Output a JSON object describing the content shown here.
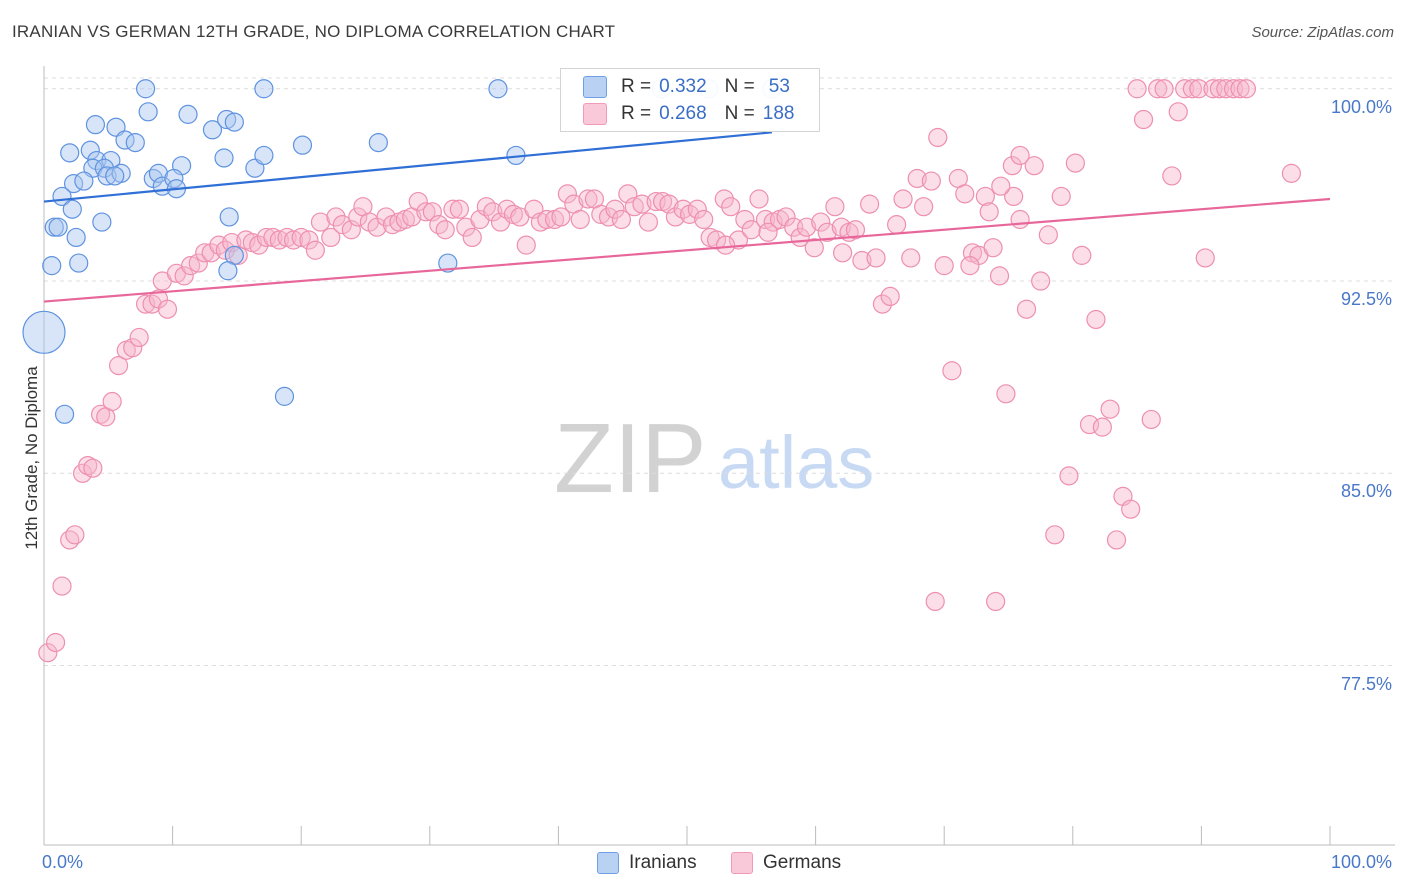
{
  "title": "IRANIAN VS GERMAN 12TH GRADE, NO DIPLOMA CORRELATION CHART",
  "source": "Source: ZipAtlas.com",
  "watermark": {
    "zip": "ZIP",
    "atlas": "atlas"
  },
  "colors": {
    "iranians": "#6fa0e6",
    "germans": "#f09ab8",
    "iranians_line": "#2f6fd6",
    "germans_line": "#e8679a",
    "tick_label": "#4a78c8"
  },
  "legend_top": [
    {
      "r_label": "R = ",
      "r_value": "0.332",
      "n_label": "N = ",
      "n_value": "53"
    },
    {
      "r_label": "R = ",
      "r_value": "0.268",
      "n_label": "N = ",
      "n_value": "188"
    }
  ],
  "legend_bottom": [
    "Iranians",
    "Germans"
  ],
  "chart_data": {
    "type": "scatter",
    "title": "IRANIAN VS GERMAN 12TH GRADE, NO DIPLOMA CORRELATION CHART",
    "xlabel": "",
    "ylabel": "12th Grade, No Diploma",
    "xlim": [
      0,
      100
    ],
    "ylim": [
      70.5,
      101.2
    ],
    "x_tick_labels": [
      "0.0%",
      "100.0%"
    ],
    "y_ticks": [
      77.5,
      85.0,
      92.5,
      100.0
    ],
    "y_tick_labels": [
      "77.5%",
      "85.0%",
      "92.5%",
      "100.0%"
    ],
    "grid": true,
    "legend_position": "top-center",
    "series": [
      {
        "name": "Iranians",
        "r": 0.332,
        "n": 53,
        "trend": [
          [
            0,
            95.6
          ],
          [
            56.6,
            98.3
          ]
        ],
        "points": [
          [
            7.9,
            100.0
          ],
          [
            17.1,
            100.0
          ],
          [
            35.3,
            100.0
          ],
          [
            8.1,
            99.1
          ],
          [
            11.2,
            99.0
          ],
          [
            4.0,
            98.6
          ],
          [
            5.6,
            98.5
          ],
          [
            13.1,
            98.4
          ],
          [
            14.2,
            98.8
          ],
          [
            14.8,
            98.7
          ],
          [
            6.3,
            98.0
          ],
          [
            7.1,
            97.9
          ],
          [
            20.1,
            97.8
          ],
          [
            26.0,
            97.9
          ],
          [
            2.0,
            97.5
          ],
          [
            3.6,
            97.6
          ],
          [
            4.1,
            97.2
          ],
          [
            5.2,
            97.2
          ],
          [
            10.7,
            97.0
          ],
          [
            14.0,
            97.3
          ],
          [
            16.4,
            96.9
          ],
          [
            17.1,
            97.4
          ],
          [
            36.7,
            97.4
          ],
          [
            3.8,
            96.9
          ],
          [
            4.7,
            96.9
          ],
          [
            4.9,
            96.6
          ],
          [
            6.0,
            96.7
          ],
          [
            8.5,
            96.5
          ],
          [
            8.9,
            96.7
          ],
          [
            9.2,
            96.2
          ],
          [
            2.3,
            96.3
          ],
          [
            3.1,
            96.4
          ],
          [
            5.5,
            96.6
          ],
          [
            10.1,
            96.5
          ],
          [
            10.3,
            96.1
          ],
          [
            1.4,
            95.8
          ],
          [
            2.2,
            95.3
          ],
          [
            0.8,
            94.6
          ],
          [
            1.1,
            94.6
          ],
          [
            4.5,
            94.8
          ],
          [
            14.4,
            95.0
          ],
          [
            2.5,
            94.2
          ],
          [
            0.6,
            93.1
          ],
          [
            2.7,
            93.2
          ],
          [
            14.8,
            93.5
          ],
          [
            14.3,
            92.9
          ],
          [
            31.4,
            93.2
          ],
          [
            0.0,
            90.5
          ],
          [
            1.6,
            87.3
          ],
          [
            18.7,
            88.0
          ],
          [
            51.7,
            100.0
          ],
          [
            48.0,
            100.0
          ],
          [
            56.6,
            100.0
          ]
        ]
      },
      {
        "name": "Germans",
        "r": 0.268,
        "n": 188,
        "trend": [
          [
            0,
            91.7
          ],
          [
            100,
            95.7
          ]
        ],
        "points": [
          [
            0.3,
            78.0
          ],
          [
            0.9,
            78.4
          ],
          [
            1.4,
            80.6
          ],
          [
            2.0,
            82.4
          ],
          [
            2.4,
            82.6
          ],
          [
            3.0,
            85.0
          ],
          [
            3.4,
            85.3
          ],
          [
            3.8,
            85.2
          ],
          [
            4.4,
            87.3
          ],
          [
            4.8,
            87.2
          ],
          [
            5.3,
            87.8
          ],
          [
            5.8,
            89.2
          ],
          [
            6.4,
            89.8
          ],
          [
            6.9,
            89.9
          ],
          [
            7.4,
            90.3
          ],
          [
            7.9,
            91.6
          ],
          [
            8.4,
            91.6
          ],
          [
            8.9,
            91.8
          ],
          [
            9.6,
            91.4
          ],
          [
            9.2,
            92.5
          ],
          [
            10.3,
            92.8
          ],
          [
            10.9,
            92.7
          ],
          [
            11.4,
            93.1
          ],
          [
            12.0,
            93.2
          ],
          [
            12.5,
            93.6
          ],
          [
            13.0,
            93.6
          ],
          [
            13.6,
            93.9
          ],
          [
            14.1,
            93.7
          ],
          [
            14.6,
            94.0
          ],
          [
            15.1,
            93.5
          ],
          [
            15.7,
            94.1
          ],
          [
            16.2,
            94.0
          ],
          [
            16.7,
            93.9
          ],
          [
            17.3,
            94.2
          ],
          [
            17.8,
            94.2
          ],
          [
            18.3,
            94.1
          ],
          [
            18.9,
            94.2
          ],
          [
            19.4,
            94.1
          ],
          [
            20.0,
            94.2
          ],
          [
            20.6,
            94.1
          ],
          [
            21.1,
            93.7
          ],
          [
            21.5,
            94.8
          ],
          [
            22.3,
            94.2
          ],
          [
            22.7,
            95.0
          ],
          [
            23.2,
            94.7
          ],
          [
            23.9,
            94.5
          ],
          [
            24.4,
            95.0
          ],
          [
            24.8,
            95.4
          ],
          [
            25.3,
            94.8
          ],
          [
            25.9,
            94.6
          ],
          [
            26.6,
            95.0
          ],
          [
            27.1,
            94.7
          ],
          [
            27.6,
            94.8
          ],
          [
            28.1,
            94.9
          ],
          [
            28.6,
            95.0
          ],
          [
            29.1,
            95.6
          ],
          [
            29.7,
            95.2
          ],
          [
            30.2,
            95.2
          ],
          [
            30.7,
            94.7
          ],
          [
            31.2,
            94.5
          ],
          [
            31.8,
            95.3
          ],
          [
            32.3,
            95.3
          ],
          [
            32.8,
            94.6
          ],
          [
            33.3,
            94.2
          ],
          [
            33.9,
            94.9
          ],
          [
            34.4,
            95.4
          ],
          [
            34.9,
            95.2
          ],
          [
            35.5,
            94.8
          ],
          [
            36.0,
            95.3
          ],
          [
            36.5,
            95.1
          ],
          [
            37.0,
            95.0
          ],
          [
            37.5,
            93.9
          ],
          [
            38.1,
            95.3
          ],
          [
            38.6,
            94.8
          ],
          [
            39.1,
            94.9
          ],
          [
            39.7,
            94.9
          ],
          [
            40.2,
            95.0
          ],
          [
            40.7,
            95.9
          ],
          [
            41.2,
            95.5
          ],
          [
            41.7,
            94.9
          ],
          [
            42.3,
            95.7
          ],
          [
            42.8,
            95.7
          ],
          [
            43.3,
            95.1
          ],
          [
            43.9,
            95.0
          ],
          [
            44.4,
            95.3
          ],
          [
            44.9,
            94.9
          ],
          [
            45.4,
            95.9
          ],
          [
            45.9,
            95.4
          ],
          [
            46.5,
            95.5
          ],
          [
            47.0,
            94.8
          ],
          [
            47.6,
            95.6
          ],
          [
            48.1,
            95.6
          ],
          [
            48.6,
            95.5
          ],
          [
            49.1,
            95.0
          ],
          [
            49.7,
            95.3
          ],
          [
            50.2,
            95.1
          ],
          [
            50.8,
            95.3
          ],
          [
            51.3,
            94.9
          ],
          [
            51.8,
            94.2
          ],
          [
            52.3,
            94.1
          ],
          [
            52.9,
            95.7
          ],
          [
            53.4,
            95.4
          ],
          [
            54.0,
            94.1
          ],
          [
            54.5,
            94.9
          ],
          [
            55.0,
            94.5
          ],
          [
            55.6,
            95.7
          ],
          [
            56.1,
            94.9
          ],
          [
            56.7,
            94.8
          ],
          [
            57.2,
            94.9
          ],
          [
            57.7,
            95.0
          ],
          [
            58.3,
            94.6
          ],
          [
            58.8,
            94.2
          ],
          [
            59.3,
            94.6
          ],
          [
            59.9,
            93.8
          ],
          [
            60.4,
            94.8
          ],
          [
            60.9,
            94.4
          ],
          [
            61.5,
            95.4
          ],
          [
            62.0,
            94.6
          ],
          [
            62.6,
            94.4
          ],
          [
            63.1,
            94.5
          ],
          [
            63.6,
            93.3
          ],
          [
            64.2,
            95.5
          ],
          [
            64.7,
            93.4
          ],
          [
            65.2,
            91.6
          ],
          [
            65.8,
            91.9
          ],
          [
            66.3,
            94.7
          ],
          [
            66.8,
            95.7
          ],
          [
            67.4,
            93.4
          ],
          [
            67.9,
            96.5
          ],
          [
            68.4,
            95.4
          ],
          [
            69.0,
            96.4
          ],
          [
            69.5,
            98.1
          ],
          [
            70.0,
            93.1
          ],
          [
            70.6,
            89.0
          ],
          [
            71.1,
            96.5
          ],
          [
            71.6,
            95.9
          ],
          [
            72.2,
            93.6
          ],
          [
            72.7,
            93.5
          ],
          [
            73.2,
            95.8
          ],
          [
            73.8,
            93.8
          ],
          [
            74.3,
            92.7
          ],
          [
            74.8,
            88.1
          ],
          [
            75.4,
            95.8
          ],
          [
            75.9,
            94.9
          ],
          [
            76.4,
            91.4
          ],
          [
            77.0,
            97.0
          ],
          [
            77.5,
            92.5
          ],
          [
            78.1,
            94.3
          ],
          [
            78.6,
            82.6
          ],
          [
            79.1,
            95.8
          ],
          [
            79.7,
            84.9
          ],
          [
            80.2,
            97.1
          ],
          [
            80.7,
            93.5
          ],
          [
            81.3,
            86.9
          ],
          [
            81.8,
            91.0
          ],
          [
            82.3,
            86.8
          ],
          [
            82.9,
            87.5
          ],
          [
            83.4,
            82.4
          ],
          [
            83.9,
            84.1
          ],
          [
            84.5,
            83.6
          ],
          [
            85.0,
            100.0
          ],
          [
            85.5,
            98.8
          ],
          [
            86.1,
            87.1
          ],
          [
            86.6,
            100.0
          ],
          [
            87.1,
            100.0
          ],
          [
            87.7,
            96.6
          ],
          [
            88.2,
            99.1
          ],
          [
            88.7,
            100.0
          ],
          [
            89.3,
            100.0
          ],
          [
            89.8,
            100.0
          ],
          [
            90.3,
            93.4
          ],
          [
            90.9,
            100.0
          ],
          [
            91.4,
            100.0
          ],
          [
            91.9,
            100.0
          ],
          [
            92.5,
            100.0
          ],
          [
            93.0,
            100.0
          ],
          [
            93.5,
            100.0
          ],
          [
            97.0,
            96.7
          ],
          [
            74.4,
            96.2
          ],
          [
            75.3,
            97.0
          ],
          [
            74.0,
            80.0
          ],
          [
            69.3,
            80.0
          ],
          [
            72.0,
            93.1
          ],
          [
            75.9,
            97.4
          ],
          [
            62.1,
            93.6
          ],
          [
            73.5,
            95.2
          ],
          [
            56.3,
            94.4
          ],
          [
            53.0,
            93.9
          ]
        ]
      }
    ]
  }
}
